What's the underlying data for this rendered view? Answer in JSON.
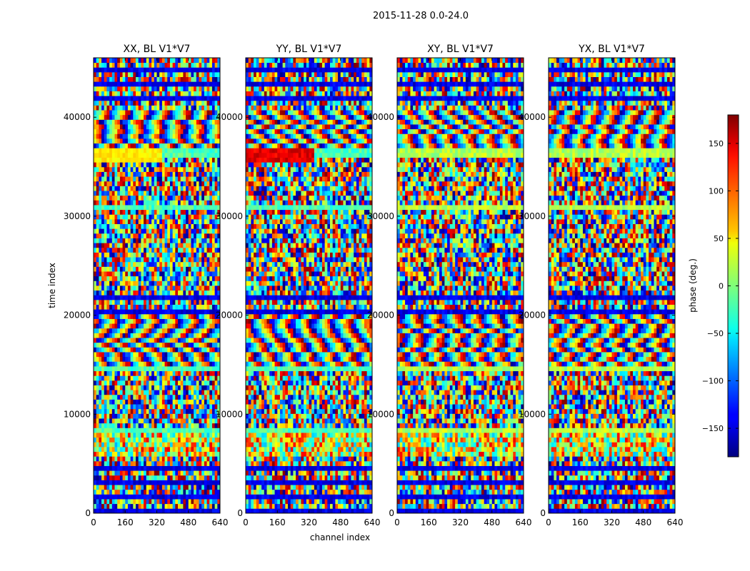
{
  "chart_data": {
    "type": "heatmap",
    "suptitle": "2015-11-28 0.0-24.0",
    "xlabel": "channel index",
    "ylabel": "time index",
    "xlim": [
      0,
      640
    ],
    "ylim": [
      0,
      46000
    ],
    "xticks": [
      0,
      160,
      320,
      480,
      640
    ],
    "yticks": [
      0,
      10000,
      20000,
      30000,
      40000
    ],
    "panels": [
      {
        "title": "XX, BL V1*V7",
        "pol": "XX"
      },
      {
        "title": "YY, BL V1*V7",
        "pol": "YY"
      },
      {
        "title": "XY, BL V1*V7",
        "pol": "XY"
      },
      {
        "title": "YX, BL V1*V7",
        "pol": "YX"
      }
    ],
    "colorbar": {
      "label": "phase (deg.)",
      "range": [
        -180,
        180
      ],
      "ticks": [
        -150,
        -100,
        -50,
        0,
        50,
        100,
        150
      ],
      "colormap": "jet"
    }
  }
}
